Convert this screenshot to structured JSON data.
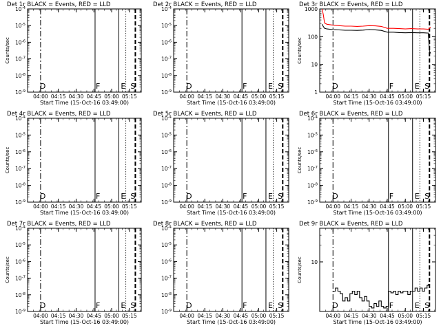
{
  "panels": [
    {
      "title": "Det 1r BLACK = Events, RED = LLD",
      "ylabel": "Counts/sec",
      "xlabel": "Start Time (15-Oct-16 03:49:00)",
      "xticks": [
        "04:00",
        "04:15",
        "04:30",
        "04:45",
        "05:00",
        "05:15"
      ],
      "yticks": [
        "10^-9",
        "10^-8",
        "10^-7",
        "10^-6",
        "10^-5",
        "10^-4"
      ],
      "flags": [
        "D",
        "F",
        "E",
        "S"
      ]
    },
    {
      "title": "Det 2r BLACK = Events, RED = LLD",
      "ylabel": "",
      "xlabel": "Start Time (15-Oct-16 03:49:00)",
      "xticks": [
        "04:00",
        "04:15",
        "04:30",
        "04:45",
        "05:00",
        "05:15"
      ],
      "yticks": [
        "10^-9",
        "10^-8",
        "10^-7",
        "10^-6",
        "10^-5",
        "10^-4"
      ],
      "flags": [
        "D",
        "F",
        "E",
        "S"
      ]
    },
    {
      "title": "Det 3r BLACK = Events, RED = LLD",
      "ylabel": "Counts/sec",
      "xlabel": "Start Time (15-Oct-16 03:49:00)",
      "xticks": [
        "04:00",
        "04:15",
        "04:30",
        "04:45",
        "05:00",
        "05:15"
      ],
      "yticks": [
        "1",
        "10",
        "100",
        "1000"
      ],
      "flags": [
        "D",
        "F",
        "E",
        "S"
      ]
    },
    {
      "title": "Det 4r BLACK = Events, RED = LLD",
      "ylabel": "Counts/sec",
      "xlabel": "Start Time (15-Oct-16 03:49:00)",
      "xticks": [
        "04:00",
        "04:15",
        "04:30",
        "04:45",
        "05:00",
        "05:15"
      ],
      "yticks": [
        "10^-9",
        "10^-8",
        "10^-7",
        "10^-6",
        "10^-5",
        "10^-4"
      ],
      "flags": [
        "D",
        "F",
        "E",
        "S"
      ]
    },
    {
      "title": "Det 5r BLACK = Events, RED = LLD",
      "ylabel": "",
      "xlabel": "Start Time (15-Oct-16 03:49:00)",
      "xticks": [
        "04:00",
        "04:15",
        "04:30",
        "04:45",
        "05:00",
        "05:15"
      ],
      "yticks": [
        "10^-9",
        "10^-8",
        "10^-7",
        "10^-6",
        "10^-5",
        "10^-4"
      ],
      "flags": [
        "D",
        "F",
        "E",
        "S"
      ]
    },
    {
      "title": "Det 6r BLACK = Events, RED = LLD",
      "ylabel": "Counts/sec",
      "xlabel": "Start Time (15-Oct-16 03:49:00)",
      "xticks": [
        "04:00",
        "04:15",
        "04:30",
        "04:45",
        "05:00",
        "05:15"
      ],
      "yticks": [
        "10^-9",
        "10^-8",
        "10^-7",
        "10^-6",
        "10^-5",
        "10^-4"
      ],
      "flags": [
        "D",
        "F",
        "E",
        "S"
      ]
    },
    {
      "title": "Det 7r BLACK = Events, RED = LLD",
      "ylabel": "Counts/sec",
      "xlabel": "Start Time (15-Oct-16 03:49:00)",
      "xticks": [
        "04:00",
        "04:15",
        "04:30",
        "04:45",
        "05:00",
        "05:15"
      ],
      "yticks": [
        "10^-9",
        "10^-8",
        "10^-7",
        "10^-6",
        "10^-5",
        "10^-4"
      ],
      "flags": [
        "D",
        "F",
        "E",
        "S"
      ]
    },
    {
      "title": "Det 8r BLACK = Events, RED = LLD",
      "ylabel": "",
      "xlabel": "Start Time (15-Oct-16 03:49:00)",
      "xticks": [
        "04:00",
        "04:15",
        "04:30",
        "04:45",
        "05:00",
        "05:15"
      ],
      "yticks": [
        "10^-9",
        "10^-8",
        "10^-7",
        "10^-6",
        "10^-5",
        "10^-4"
      ],
      "flags": [
        "D",
        "F",
        "E",
        "S"
      ]
    },
    {
      "title": "Det 9r BLACK = Events, RED = LLD",
      "ylabel": "Counts/sec",
      "xlabel": "Start Time (15-Oct-16 03:49:00)",
      "xticks": [
        "04:00",
        "04:15",
        "04:30",
        "04:45",
        "05:00",
        "05:15"
      ],
      "yticks": [
        "10"
      ],
      "flags": [
        "D",
        "F",
        "E",
        "S"
      ]
    }
  ],
  "chart_data": [
    {
      "type": "line",
      "title": "Det 1r BLACK = Events, RED = LLD",
      "xlabel": "Start Time (15-Oct-16 03:49:00)",
      "ylabel": "Counts/sec",
      "y_scale": "log",
      "ylim": [
        1e-09,
        0.0001
      ],
      "xlim": [
        "03:49",
        "05:25"
      ],
      "series": [],
      "markers": [
        {
          "label": "D",
          "x": "04:00",
          "style": "dash-dot"
        },
        {
          "label": "F",
          "x": "04:46",
          "style": "solid"
        },
        {
          "label": "E",
          "x": "05:06",
          "style": "solid"
        },
        {
          "label": "S",
          "x": "05:20",
          "style": "dashed"
        }
      ]
    },
    {
      "type": "line",
      "title": "Det 2r BLACK = Events, RED = LLD",
      "xlabel": "Start Time (15-Oct-16 03:49:00)",
      "ylabel": "",
      "y_scale": "log",
      "ylim": [
        1e-09,
        0.0001
      ],
      "xlim": [
        "03:49",
        "05:25"
      ],
      "series": [],
      "markers": [
        {
          "label": "D",
          "x": "04:00",
          "style": "dash-dot"
        },
        {
          "label": "F",
          "x": "04:46",
          "style": "solid"
        },
        {
          "label": "E",
          "x": "05:06",
          "style": "solid"
        },
        {
          "label": "S",
          "x": "05:20",
          "style": "dashed"
        }
      ]
    },
    {
      "type": "line",
      "title": "Det 3r BLACK = Events, RED = LLD",
      "xlabel": "Start Time (15-Oct-16 03:49:00)",
      "ylabel": "Counts/sec",
      "y_scale": "log",
      "ylim": [
        1,
        1000
      ],
      "xlim": [
        "03:49",
        "05:25"
      ],
      "series": [
        {
          "color": "#ff0000",
          "x": [
            "03:51",
            "03:52",
            "03:53",
            "03:55",
            "04:00",
            "04:05",
            "04:10",
            "04:15",
            "04:20",
            "04:25",
            "04:30",
            "04:35",
            "04:40",
            "04:45",
            "04:50",
            "04:55",
            "05:00",
            "05:05",
            "05:10",
            "05:15",
            "05:19",
            "05:20",
            "05:21"
          ],
          "y": [
            1000,
            600,
            310,
            280,
            260,
            250,
            240,
            240,
            235,
            240,
            250,
            245,
            235,
            200,
            200,
            195,
            190,
            195,
            190,
            190,
            185,
            200,
            220
          ]
        },
        {
          "color": "#000000",
          "x": [
            "03:51",
            "03:52",
            "03:53",
            "03:55",
            "04:00",
            "04:05",
            "04:10",
            "04:15",
            "04:20",
            "04:25",
            "04:30",
            "04:35",
            "04:40",
            "04:45",
            "04:50",
            "04:55",
            "05:00",
            "05:05",
            "05:10",
            "05:15",
            "05:19",
            "05:20",
            "05:21"
          ],
          "y": [
            280,
            230,
            200,
            190,
            180,
            175,
            170,
            170,
            168,
            172,
            180,
            176,
            168,
            145,
            145,
            140,
            138,
            140,
            138,
            138,
            135,
            30,
            25
          ]
        }
      ],
      "markers": [
        {
          "label": "D",
          "x": "04:00",
          "style": "dash-dot"
        },
        {
          "label": "F",
          "x": "04:46",
          "style": "solid"
        },
        {
          "label": "E",
          "x": "05:06",
          "style": "solid"
        },
        {
          "label": "S",
          "x": "05:20",
          "style": "dashed"
        }
      ]
    },
    {
      "type": "line",
      "title": "Det 4r BLACK = Events, RED = LLD",
      "xlabel": "Start Time (15-Oct-16 03:49:00)",
      "ylabel": "Counts/sec",
      "y_scale": "log",
      "ylim": [
        1e-09,
        0.0001
      ],
      "xlim": [
        "03:49",
        "05:25"
      ],
      "series": [],
      "markers": [
        {
          "label": "D",
          "x": "04:00",
          "style": "dash-dot"
        },
        {
          "label": "F",
          "x": "04:46",
          "style": "solid"
        },
        {
          "label": "E",
          "x": "05:06",
          "style": "solid"
        },
        {
          "label": "S",
          "x": "05:20",
          "style": "dashed"
        }
      ]
    },
    {
      "type": "line",
      "title": "Det 5r BLACK = Events, RED = LLD",
      "xlabel": "Start Time (15-Oct-16 03:49:00)",
      "ylabel": "",
      "y_scale": "log",
      "ylim": [
        1e-09,
        0.0001
      ],
      "xlim": [
        "03:49",
        "05:25"
      ],
      "series": [],
      "markers": [
        {
          "label": "D",
          "x": "04:00",
          "style": "dash-dot"
        },
        {
          "label": "F",
          "x": "04:46",
          "style": "solid"
        },
        {
          "label": "E",
          "x": "05:06",
          "style": "solid"
        },
        {
          "label": "S",
          "x": "05:20",
          "style": "dashed"
        }
      ]
    },
    {
      "type": "line",
      "title": "Det 6r BLACK = Events, RED = LLD",
      "xlabel": "Start Time (15-Oct-16 03:49:00)",
      "ylabel": "Counts/sec",
      "y_scale": "log",
      "ylim": [
        1e-09,
        0.0001
      ],
      "xlim": [
        "03:49",
        "05:25"
      ],
      "series": [],
      "markers": [
        {
          "label": "D",
          "x": "04:00",
          "style": "dash-dot"
        },
        {
          "label": "F",
          "x": "04:46",
          "style": "solid"
        },
        {
          "label": "E",
          "x": "05:06",
          "style": "solid"
        },
        {
          "label": "S",
          "x": "05:20",
          "style": "dashed"
        }
      ]
    },
    {
      "type": "line",
      "title": "Det 7r BLACK = Events, RED = LLD",
      "xlabel": "Start Time (15-Oct-16 03:49:00)",
      "ylabel": "Counts/sec",
      "y_scale": "log",
      "ylim": [
        1e-09,
        0.0001
      ],
      "xlim": [
        "03:49",
        "05:25"
      ],
      "series": [],
      "markers": [
        {
          "label": "D",
          "x": "04:00",
          "style": "dash-dot"
        },
        {
          "label": "F",
          "x": "04:46",
          "style": "solid"
        },
        {
          "label": "E",
          "x": "05:06",
          "style": "solid"
        },
        {
          "label": "S",
          "x": "05:20",
          "style": "dashed"
        }
      ]
    },
    {
      "type": "line",
      "title": "Det 8r BLACK = Events, RED = LLD",
      "xlabel": "Start Time (15-Oct-16 03:49:00)",
      "ylabel": "",
      "y_scale": "log",
      "ylim": [
        1e-09,
        0.0001
      ],
      "xlim": [
        "03:49",
        "05:25"
      ],
      "series": [],
      "markers": [
        {
          "label": "D",
          "x": "04:00",
          "style": "dash-dot"
        },
        {
          "label": "F",
          "x": "04:46",
          "style": "solid"
        },
        {
          "label": "E",
          "x": "05:06",
          "style": "solid"
        },
        {
          "label": "S",
          "x": "05:20",
          "style": "dashed"
        }
      ]
    },
    {
      "type": "line",
      "title": "Det 9r BLACK = Events, RED = LLD",
      "xlabel": "Start Time (15-Oct-16 03:49:00)",
      "ylabel": "Counts/sec",
      "y_scale": "log",
      "ylim": [
        1.3,
        40
      ],
      "xlim": [
        "03:49",
        "05:25"
      ],
      "series": [
        {
          "color": "#000000",
          "x": [
            "04:00",
            "04:02",
            "04:04",
            "04:06",
            "04:08",
            "04:10",
            "04:12",
            "04:14",
            "04:16",
            "04:18",
            "04:20",
            "04:22",
            "04:24",
            "04:26",
            "04:28",
            "04:30",
            "04:32",
            "04:34",
            "04:36",
            "04:38",
            "04:40",
            "04:42",
            "04:44",
            "04:46",
            "04:48",
            "04:50",
            "04:52",
            "04:54",
            "04:56",
            "04:58",
            "05:00",
            "05:02",
            "05:04",
            "05:06",
            "05:08",
            "05:10",
            "05:12",
            "05:14",
            "05:16",
            "05:18",
            "05:19"
          ],
          "y": [
            3,
            3.4,
            3,
            2.7,
            2,
            2.3,
            2,
            2.7,
            3,
            2.6,
            3,
            2.3,
            2,
            2.4,
            2,
            1.6,
            1.5,
            1.8,
            1.6,
            2,
            1.6,
            1.5,
            1.6,
            3,
            2.8,
            3,
            2.6,
            3,
            2.8,
            3,
            3,
            2.6,
            3,
            3,
            3.4,
            3,
            3.4,
            3,
            3.4,
            3.8,
            4
          ]
        }
      ],
      "markers": [
        {
          "label": "D",
          "x": "04:00",
          "style": "dash-dot"
        },
        {
          "label": "F",
          "x": "04:46",
          "style": "solid"
        },
        {
          "label": "E",
          "x": "05:06",
          "style": "solid"
        },
        {
          "label": "S",
          "x": "05:20",
          "style": "dashed"
        }
      ]
    }
  ]
}
